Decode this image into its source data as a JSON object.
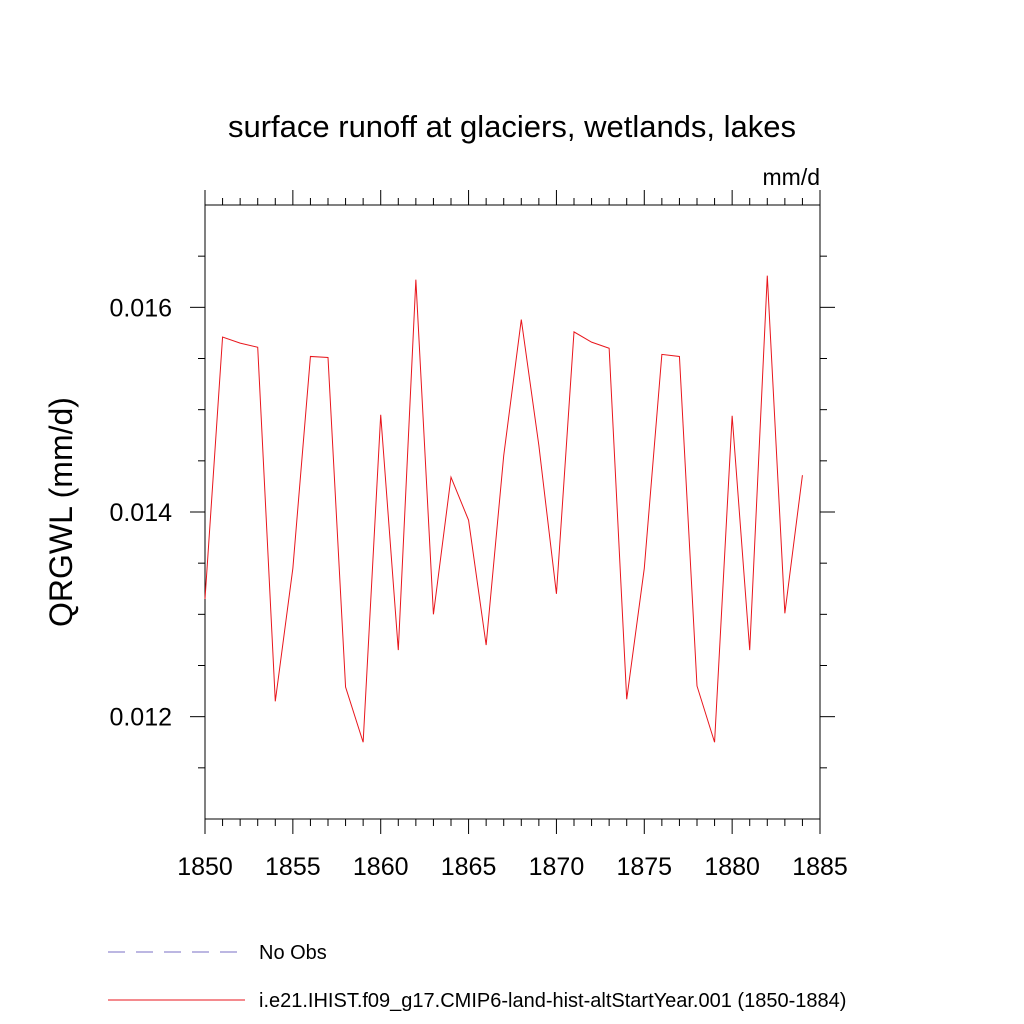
{
  "chart_data": {
    "type": "line",
    "title": "surface runoff at glaciers, wetlands, lakes",
    "units": "mm/d",
    "ylabel": "QRGWL  (mm/d)",
    "xlabel": "",
    "xlim": [
      1850,
      1885
    ],
    "ylim": [
      0.011,
      0.017
    ],
    "x_ticks": [
      "1850",
      "1855",
      "1860",
      "1865",
      "1870",
      "1875",
      "1880",
      "1885"
    ],
    "x_tick_values": [
      1850,
      1855,
      1860,
      1865,
      1870,
      1875,
      1880,
      1885
    ],
    "y_ticks": [
      "0.012",
      "0.014",
      "0.016"
    ],
    "y_tick_values": [
      0.012,
      0.014,
      0.016
    ],
    "y_minor_step": 0.0005,
    "x_minor_step": 1,
    "grid": false,
    "legend_position": "bottom",
    "x": [
      1850,
      1851,
      1852,
      1853,
      1854,
      1855,
      1856,
      1857,
      1858,
      1859,
      1860,
      1861,
      1862,
      1863,
      1864,
      1865,
      1866,
      1867,
      1868,
      1869,
      1870,
      1871,
      1872,
      1873,
      1874,
      1875,
      1876,
      1877,
      1878,
      1879,
      1880,
      1881,
      1882,
      1883,
      1884
    ],
    "series": [
      {
        "name": "i.e21.IHIST.f09_g17.CMIP6-land-hist-altStartYear.001 (1850-1884)",
        "color": "#e8161c",
        "style": "solid",
        "values": [
          0.01315,
          0.01571,
          0.01565,
          0.01561,
          0.01215,
          0.01345,
          0.01552,
          0.01551,
          0.01229,
          0.01175,
          0.01495,
          0.01265,
          0.01627,
          0.013,
          0.01434,
          0.01392,
          0.0127,
          0.01455,
          0.01588,
          0.01465,
          0.0132,
          0.01576,
          0.01566,
          0.0156,
          0.01217,
          0.01345,
          0.01554,
          0.01552,
          0.0123,
          0.01175,
          0.01494,
          0.01265,
          0.01631,
          0.01301,
          0.01436
        ]
      }
    ],
    "legend": [
      {
        "label": "No Obs",
        "color": "#7a6fc4",
        "style": "dashed"
      },
      {
        "label": "i.e21.IHIST.f09_g17.CMIP6-land-hist-altStartYear.001 (1850-1884)",
        "color": "#e8161c",
        "style": "solid"
      }
    ]
  }
}
